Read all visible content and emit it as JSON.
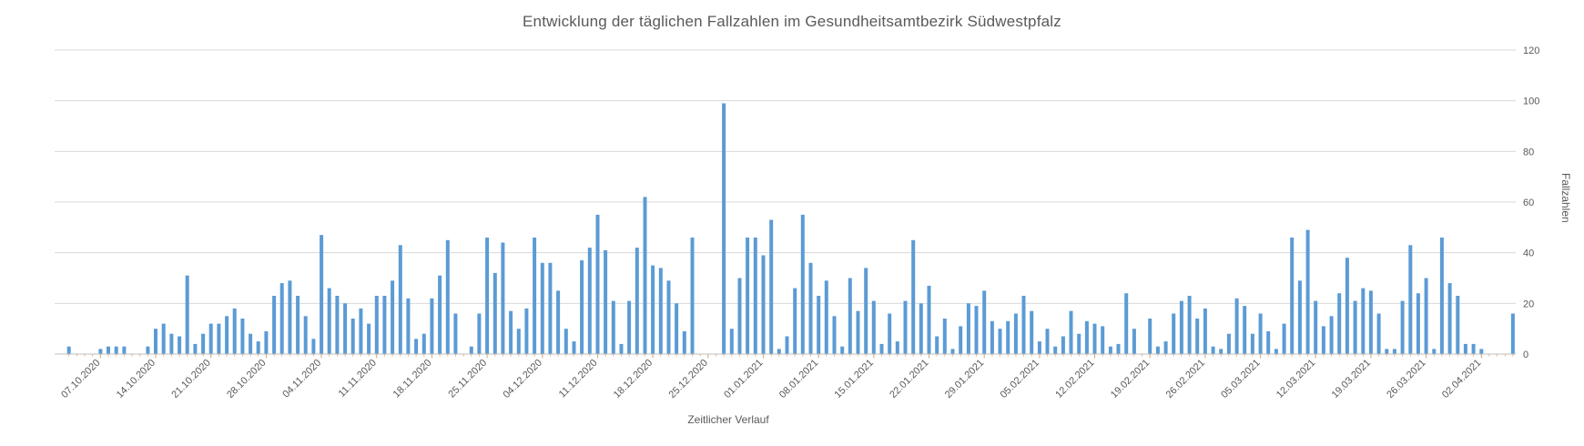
{
  "chart": {
    "title": "Entwicklung der täglichen Fallzahlen im Gesundheitsamtbezirk Südwestpfalz",
    "x_axis_title": "Zeitlicher Verlauf",
    "y_axis_title": "Fallzahlen"
  },
  "chart_data": {
    "type": "bar",
    "title": "Entwicklung der täglichen Fallzahlen im Gesundheitsamtbezirk Südwestpfalz",
    "xlabel": "Zeitlicher Verlauf",
    "ylabel": "Fallzahlen",
    "ylim": [
      0,
      120
    ],
    "y_ticks": [
      0,
      20,
      40,
      60,
      80,
      100,
      120
    ],
    "grid": "horizontal",
    "legend": "none",
    "y_axis_side": "right",
    "bar_color": "#5B9BD5",
    "gridline_color": "#D9D9D9",
    "axis_line_color": "#BFBFBF",
    "tick_mark_color": "#D9A679",
    "axis_text_color": "#595959",
    "x_tick_labels": [
      "07.10.2020",
      "14.10.2020",
      "21.10.2020",
      "28.10.2020",
      "04.11.2020",
      "11.11.2020",
      "18.11.2020",
      "25.11.2020",
      "04.12.2020",
      "11.12.2020",
      "18.12.2020",
      "25.12.2020",
      "01.01.2021",
      "08.01.2021",
      "15.01.2021",
      "22.01.2021",
      "29.01.2021",
      "05.02.2021",
      "12.02.2021",
      "19.02.2021",
      "26.02.2021",
      "05.03.2021",
      "12.03.2021",
      "19.03.2021",
      "26.03.2021",
      "02.04.2021"
    ],
    "label_start_index": 4,
    "label_interval": 7,
    "values": [
      3,
      0,
      0,
      0,
      2,
      3,
      3,
      3,
      0,
      0,
      3,
      10,
      12,
      8,
      7,
      31,
      4,
      8,
      12,
      12,
      15,
      18,
      14,
      8,
      5,
      9,
      23,
      28,
      29,
      23,
      15,
      6,
      47,
      26,
      23,
      20,
      14,
      18,
      12,
      23,
      23,
      29,
      43,
      22,
      6,
      8,
      22,
      31,
      45,
      16,
      0,
      3,
      16,
      46,
      32,
      44,
      17,
      10,
      18,
      46,
      36,
      36,
      25,
      10,
      5,
      37,
      42,
      55,
      41,
      21,
      4,
      21,
      42,
      62,
      35,
      34,
      29,
      20,
      9,
      46,
      0,
      0,
      0,
      99,
      10,
      30,
      46,
      46,
      39,
      53,
      2,
      7,
      26,
      55,
      36,
      23,
      29,
      15,
      3,
      30,
      17,
      34,
      21,
      4,
      16,
      5,
      21,
      45,
      20,
      27,
      7,
      14,
      2,
      11,
      20,
      19,
      25,
      13,
      10,
      13,
      16,
      23,
      17,
      5,
      10,
      3,
      7,
      17,
      8,
      13,
      12,
      11,
      3,
      4,
      24,
      10,
      0,
      14,
      3,
      5,
      16,
      21,
      23,
      14,
      18,
      3,
      2,
      8,
      22,
      19,
      8,
      16,
      9,
      2,
      12,
      46,
      29,
      49,
      21,
      11,
      15,
      24,
      38,
      21,
      26,
      25,
      16,
      2,
      2,
      21,
      43,
      24,
      30,
      2,
      46,
      28,
      23,
      4,
      4,
      2,
      0,
      0,
      0,
      16
    ]
  }
}
